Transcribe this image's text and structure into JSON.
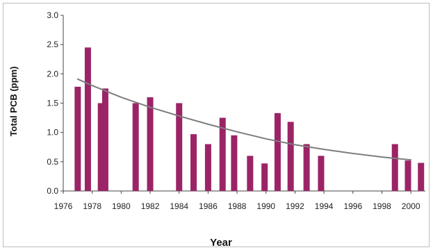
{
  "chart_data": {
    "type": "bar",
    "title": "",
    "xlabel": "Year",
    "ylabel": "Total PCB (ppm)",
    "ylim": [
      0,
      3.0
    ],
    "xlim": [
      1976,
      2001
    ],
    "yticks": [
      "0.0",
      "0.5",
      "1.0",
      "1.5",
      "2.0",
      "2.5",
      "3.0"
    ],
    "xticks": [
      "1976",
      "1978",
      "1980",
      "1982",
      "1984",
      "1986",
      "1988",
      "1990",
      "1992",
      "1994",
      "1996",
      "1998",
      "2000"
    ],
    "grid": false,
    "bar_color": "#9b2466",
    "trend_color": "#7d7d7d",
    "bars": [
      {
        "x": 1977.0,
        "value": 1.78
      },
      {
        "x": 1977.7,
        "value": 2.45
      },
      {
        "x": 1978.6,
        "value": 1.5
      },
      {
        "x": 1978.9,
        "value": 1.75
      },
      {
        "x": 1981.0,
        "value": 1.5
      },
      {
        "x": 1982.0,
        "value": 1.6
      },
      {
        "x": 1984.0,
        "value": 1.5
      },
      {
        "x": 1985.0,
        "value": 0.97
      },
      {
        "x": 1986.0,
        "value": 0.8
      },
      {
        "x": 1987.0,
        "value": 1.25
      },
      {
        "x": 1987.8,
        "value": 0.95
      },
      {
        "x": 1988.9,
        "value": 0.6
      },
      {
        "x": 1989.9,
        "value": 0.47
      },
      {
        "x": 1990.8,
        "value": 1.33
      },
      {
        "x": 1991.7,
        "value": 1.18
      },
      {
        "x": 1992.8,
        "value": 0.8
      },
      {
        "x": 1993.8,
        "value": 0.6
      },
      {
        "x": 1998.9,
        "value": 0.8
      },
      {
        "x": 1999.8,
        "value": 0.52
      },
      {
        "x": 2000.7,
        "value": 0.48
      }
    ],
    "trend": {
      "type": "line",
      "x": [
        1977,
        1978,
        1980,
        1982,
        1984,
        1986,
        1988,
        1990,
        1992,
        1994,
        1996,
        1998,
        2000
      ],
      "y": [
        1.91,
        1.8,
        1.6,
        1.43,
        1.28,
        1.14,
        1.01,
        0.89,
        0.79,
        0.71,
        0.64,
        0.58,
        0.53
      ]
    }
  }
}
